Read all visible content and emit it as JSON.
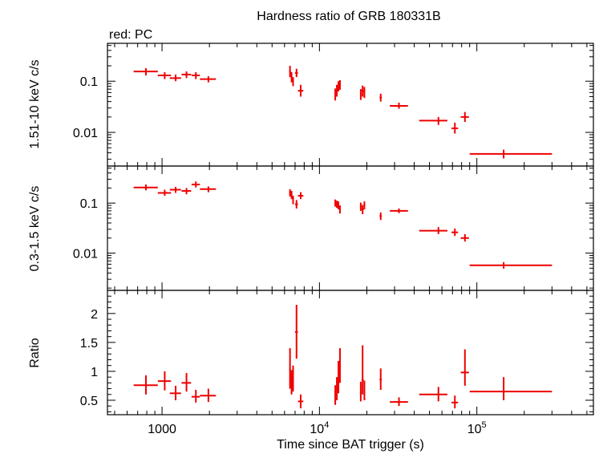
{
  "title": "Hardness ratio of GRB 180331B",
  "subtitle": "red: PC",
  "xlabel": "Time since BAT trigger (s)",
  "x_ticks": [
    {
      "value": 1000,
      "label": "1000",
      "sup": ""
    },
    {
      "value": 10000,
      "label": "10",
      "sup": "4"
    },
    {
      "value": 100000,
      "label": "10",
      "sup": "5"
    }
  ],
  "colors": {
    "series": "#ee0000",
    "axes": "#000000"
  },
  "chart_data": [
    {
      "type": "scatter",
      "name": "hard-band",
      "ylabel": "1.51-10 keV c/s",
      "xscale": "log",
      "yscale": "log",
      "xlim": [
        450,
        550000
      ],
      "ylim": [
        0.0022,
        0.55
      ],
      "yticks": [
        {
          "value": 0.1,
          "label": "0.1"
        },
        {
          "value": 0.01,
          "label": "0.01"
        }
      ],
      "points": [
        {
          "x": 790,
          "xlo": 660,
          "xhi": 940,
          "y": 0.155,
          "ylo": 0.13,
          "yhi": 0.18
        },
        {
          "x": 1040,
          "xlo": 940,
          "xhi": 1140,
          "y": 0.13,
          "ylo": 0.11,
          "yhi": 0.15
        },
        {
          "x": 1220,
          "xlo": 1120,
          "xhi": 1320,
          "y": 0.115,
          "ylo": 0.1,
          "yhi": 0.135
        },
        {
          "x": 1430,
          "xlo": 1330,
          "xhi": 1530,
          "y": 0.135,
          "ylo": 0.115,
          "yhi": 0.155
        },
        {
          "x": 1640,
          "xlo": 1540,
          "xhi": 1740,
          "y": 0.13,
          "ylo": 0.11,
          "yhi": 0.15
        },
        {
          "x": 1970,
          "xlo": 1740,
          "xhi": 2200,
          "y": 0.11,
          "ylo": 0.095,
          "yhi": 0.125
        },
        {
          "x": 6500,
          "xlo": 6420,
          "xhi": 6580,
          "y": 0.155,
          "ylo": 0.12,
          "yhi": 0.2
        },
        {
          "x": 6650,
          "xlo": 6570,
          "xhi": 6730,
          "y": 0.12,
          "ylo": 0.095,
          "yhi": 0.15
        },
        {
          "x": 6800,
          "xlo": 6720,
          "xhi": 6880,
          "y": 0.1,
          "ylo": 0.08,
          "yhi": 0.12
        },
        {
          "x": 7150,
          "xlo": 7000,
          "xhi": 7300,
          "y": 0.145,
          "ylo": 0.12,
          "yhi": 0.175
        },
        {
          "x": 7600,
          "xlo": 7300,
          "xhi": 7900,
          "y": 0.065,
          "ylo": 0.05,
          "yhi": 0.085
        },
        {
          "x": 12600,
          "xlo": 12450,
          "xhi": 12750,
          "y": 0.055,
          "ylo": 0.042,
          "yhi": 0.072
        },
        {
          "x": 12900,
          "xlo": 12750,
          "xhi": 13050,
          "y": 0.065,
          "ylo": 0.05,
          "yhi": 0.085
        },
        {
          "x": 13200,
          "xlo": 13050,
          "xhi": 13350,
          "y": 0.08,
          "ylo": 0.063,
          "yhi": 0.1
        },
        {
          "x": 13500,
          "xlo": 13350,
          "xhi": 13650,
          "y": 0.085,
          "ylo": 0.068,
          "yhi": 0.105
        },
        {
          "x": 18300,
          "xlo": 18100,
          "xhi": 18500,
          "y": 0.055,
          "ylo": 0.043,
          "yhi": 0.07
        },
        {
          "x": 18800,
          "xlo": 18500,
          "xhi": 19100,
          "y": 0.065,
          "ylo": 0.05,
          "yhi": 0.082
        },
        {
          "x": 19300,
          "xlo": 19100,
          "xhi": 19500,
          "y": 0.06,
          "ylo": 0.047,
          "yhi": 0.077
        },
        {
          "x": 24500,
          "xlo": 24100,
          "xhi": 24900,
          "y": 0.048,
          "ylo": 0.04,
          "yhi": 0.057
        },
        {
          "x": 32000,
          "xlo": 28000,
          "xhi": 36500,
          "y": 0.033,
          "ylo": 0.029,
          "yhi": 0.038
        },
        {
          "x": 57000,
          "xlo": 43000,
          "xhi": 65000,
          "y": 0.017,
          "ylo": 0.014,
          "yhi": 0.02
        },
        {
          "x": 72500,
          "xlo": 69000,
          "xhi": 76000,
          "y": 0.012,
          "ylo": 0.0095,
          "yhi": 0.0155
        },
        {
          "x": 84000,
          "xlo": 79000,
          "xhi": 89000,
          "y": 0.02,
          "ylo": 0.016,
          "yhi": 0.025
        },
        {
          "x": 148000,
          "xlo": 90000,
          "xhi": 300000,
          "y": 0.0038,
          "ylo": 0.0031,
          "yhi": 0.0046
        }
      ]
    },
    {
      "type": "scatter",
      "name": "soft-band",
      "ylabel": "0.3-1.5 keV c/s",
      "xscale": "log",
      "yscale": "log",
      "xlim": [
        450,
        550000
      ],
      "ylim": [
        0.0018,
        0.55
      ],
      "yticks": [
        {
          "value": 0.1,
          "label": "0.1"
        },
        {
          "value": 0.01,
          "label": "0.01"
        }
      ],
      "points": [
        {
          "x": 790,
          "xlo": 660,
          "xhi": 940,
          "y": 0.205,
          "ylo": 0.18,
          "yhi": 0.235
        },
        {
          "x": 1040,
          "xlo": 940,
          "xhi": 1140,
          "y": 0.16,
          "ylo": 0.14,
          "yhi": 0.185
        },
        {
          "x": 1220,
          "xlo": 1120,
          "xhi": 1320,
          "y": 0.185,
          "ylo": 0.16,
          "yhi": 0.21
        },
        {
          "x": 1430,
          "xlo": 1330,
          "xhi": 1530,
          "y": 0.175,
          "ylo": 0.15,
          "yhi": 0.2
        },
        {
          "x": 1640,
          "xlo": 1540,
          "xhi": 1740,
          "y": 0.235,
          "ylo": 0.205,
          "yhi": 0.27
        },
        {
          "x": 1970,
          "xlo": 1740,
          "xhi": 2200,
          "y": 0.19,
          "ylo": 0.165,
          "yhi": 0.215
        },
        {
          "x": 6500,
          "xlo": 6420,
          "xhi": 6580,
          "y": 0.16,
          "ylo": 0.135,
          "yhi": 0.19
        },
        {
          "x": 6650,
          "xlo": 6570,
          "xhi": 6730,
          "y": 0.145,
          "ylo": 0.12,
          "yhi": 0.175
        },
        {
          "x": 6800,
          "xlo": 6720,
          "xhi": 6880,
          "y": 0.115,
          "ylo": 0.095,
          "yhi": 0.14
        },
        {
          "x": 7150,
          "xlo": 7000,
          "xhi": 7300,
          "y": 0.095,
          "ylo": 0.078,
          "yhi": 0.115
        },
        {
          "x": 7600,
          "xlo": 7300,
          "xhi": 7900,
          "y": 0.14,
          "ylo": 0.12,
          "yhi": 0.165
        },
        {
          "x": 12600,
          "xlo": 12450,
          "xhi": 12750,
          "y": 0.1,
          "ylo": 0.085,
          "yhi": 0.118
        },
        {
          "x": 12900,
          "xlo": 12750,
          "xhi": 13050,
          "y": 0.095,
          "ylo": 0.08,
          "yhi": 0.112
        },
        {
          "x": 13200,
          "xlo": 13050,
          "xhi": 13350,
          "y": 0.09,
          "ylo": 0.075,
          "yhi": 0.108
        },
        {
          "x": 13500,
          "xlo": 13350,
          "xhi": 13650,
          "y": 0.075,
          "ylo": 0.062,
          "yhi": 0.09
        },
        {
          "x": 18300,
          "xlo": 18100,
          "xhi": 18500,
          "y": 0.085,
          "ylo": 0.07,
          "yhi": 0.102
        },
        {
          "x": 18800,
          "xlo": 18500,
          "xhi": 19100,
          "y": 0.075,
          "ylo": 0.06,
          "yhi": 0.092
        },
        {
          "x": 19300,
          "xlo": 19100,
          "xhi": 19500,
          "y": 0.09,
          "ylo": 0.075,
          "yhi": 0.108
        },
        {
          "x": 24500,
          "xlo": 24100,
          "xhi": 24900,
          "y": 0.055,
          "ylo": 0.046,
          "yhi": 0.065
        },
        {
          "x": 32000,
          "xlo": 28000,
          "xhi": 36500,
          "y": 0.07,
          "ylo": 0.063,
          "yhi": 0.078
        },
        {
          "x": 57000,
          "xlo": 43000,
          "xhi": 65000,
          "y": 0.028,
          "ylo": 0.024,
          "yhi": 0.033
        },
        {
          "x": 72500,
          "xlo": 69000,
          "xhi": 76000,
          "y": 0.026,
          "ylo": 0.022,
          "yhi": 0.031
        },
        {
          "x": 84000,
          "xlo": 79000,
          "xhi": 89000,
          "y": 0.02,
          "ylo": 0.017,
          "yhi": 0.024
        },
        {
          "x": 148000,
          "xlo": 90000,
          "xhi": 300000,
          "y": 0.0057,
          "ylo": 0.0049,
          "yhi": 0.0066
        }
      ]
    },
    {
      "type": "scatter",
      "name": "ratio",
      "ylabel": "Ratio",
      "xscale": "log",
      "yscale": "linear",
      "xlim": [
        450,
        550000
      ],
      "ylim": [
        0.25,
        2.4
      ],
      "yticks": [
        {
          "value": 0.5,
          "label": "0.5"
        },
        {
          "value": 1,
          "label": "1"
        },
        {
          "value": 1.5,
          "label": "1.5"
        },
        {
          "value": 2,
          "label": "2"
        }
      ],
      "points": [
        {
          "x": 790,
          "xlo": 660,
          "xhi": 940,
          "y": 0.76,
          "ylo": 0.6,
          "yhi": 0.93
        },
        {
          "x": 1040,
          "xlo": 940,
          "xhi": 1140,
          "y": 0.83,
          "ylo": 0.67,
          "yhi": 1.0
        },
        {
          "x": 1220,
          "xlo": 1120,
          "xhi": 1320,
          "y": 0.62,
          "ylo": 0.5,
          "yhi": 0.75
        },
        {
          "x": 1430,
          "xlo": 1330,
          "xhi": 1530,
          "y": 0.8,
          "ylo": 0.65,
          "yhi": 0.97
        },
        {
          "x": 1640,
          "xlo": 1540,
          "xhi": 1740,
          "y": 0.56,
          "ylo": 0.46,
          "yhi": 0.68
        },
        {
          "x": 1970,
          "xlo": 1740,
          "xhi": 2200,
          "y": 0.58,
          "ylo": 0.47,
          "yhi": 0.7
        },
        {
          "x": 6500,
          "xlo": 6420,
          "xhi": 6580,
          "y": 1.03,
          "ylo": 0.7,
          "yhi": 1.4
        },
        {
          "x": 6650,
          "xlo": 6570,
          "xhi": 6730,
          "y": 0.8,
          "ylo": 0.6,
          "yhi": 1.02
        },
        {
          "x": 6800,
          "xlo": 6720,
          "xhi": 6880,
          "y": 0.85,
          "ylo": 0.65,
          "yhi": 1.1
        },
        {
          "x": 7150,
          "xlo": 7000,
          "xhi": 7300,
          "y": 1.68,
          "ylo": 1.22,
          "yhi": 2.15
        },
        {
          "x": 7600,
          "xlo": 7300,
          "xhi": 7900,
          "y": 0.48,
          "ylo": 0.36,
          "yhi": 0.6
        },
        {
          "x": 12600,
          "xlo": 12450,
          "xhi": 12750,
          "y": 0.58,
          "ylo": 0.42,
          "yhi": 0.76
        },
        {
          "x": 12900,
          "xlo": 12750,
          "xhi": 13050,
          "y": 0.7,
          "ylo": 0.5,
          "yhi": 0.9
        },
        {
          "x": 13200,
          "xlo": 13050,
          "xhi": 13350,
          "y": 0.88,
          "ylo": 0.62,
          "yhi": 1.18
        },
        {
          "x": 13500,
          "xlo": 13350,
          "xhi": 13650,
          "y": 1.1,
          "ylo": 0.8,
          "yhi": 1.4
        },
        {
          "x": 18300,
          "xlo": 18100,
          "xhi": 18500,
          "y": 0.64,
          "ylo": 0.48,
          "yhi": 0.82
        },
        {
          "x": 18800,
          "xlo": 18500,
          "xhi": 19100,
          "y": 0.85,
          "ylo": 0.6,
          "yhi": 1.45
        },
        {
          "x": 19300,
          "xlo": 19100,
          "xhi": 19500,
          "y": 0.66,
          "ylo": 0.5,
          "yhi": 0.84
        },
        {
          "x": 24500,
          "xlo": 24100,
          "xhi": 24900,
          "y": 0.86,
          "ylo": 0.68,
          "yhi": 1.05
        },
        {
          "x": 32000,
          "xlo": 28000,
          "xhi": 36500,
          "y": 0.47,
          "ylo": 0.4,
          "yhi": 0.55
        },
        {
          "x": 57000,
          "xlo": 43000,
          "xhi": 65000,
          "y": 0.6,
          "ylo": 0.48,
          "yhi": 0.73
        },
        {
          "x": 72500,
          "xlo": 69000,
          "xhi": 76000,
          "y": 0.46,
          "ylo": 0.36,
          "yhi": 0.58
        },
        {
          "x": 84000,
          "xlo": 79000,
          "xhi": 89000,
          "y": 0.98,
          "ylo": 0.75,
          "yhi": 1.38
        },
        {
          "x": 148000,
          "xlo": 90000,
          "xhi": 300000,
          "y": 0.65,
          "ylo": 0.5,
          "yhi": 0.9
        }
      ]
    }
  ]
}
